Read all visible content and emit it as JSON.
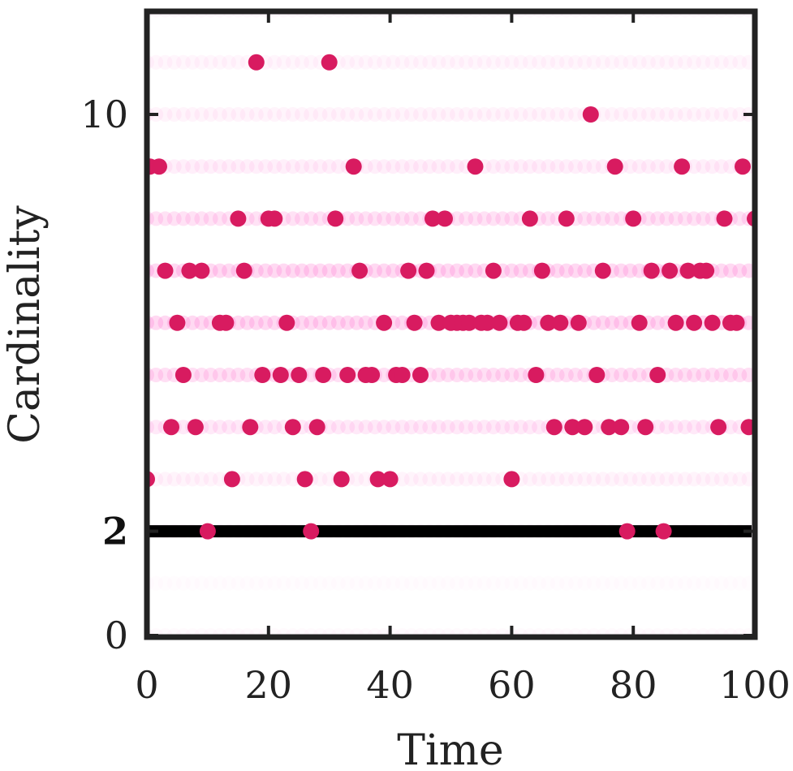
{
  "chart_data": {
    "type": "scatter",
    "title": "",
    "xlabel": "Time",
    "ylabel": "Cardinality",
    "xlim": [
      0,
      100
    ],
    "ylim": [
      0,
      12
    ],
    "xticks": [
      0,
      20,
      40,
      60,
      80,
      100
    ],
    "xtick_labels": [
      "0",
      "20",
      "40",
      "60",
      "80",
      "100"
    ],
    "yticks": [
      0,
      2,
      10
    ],
    "ytick_labels": [
      "0",
      "2",
      "10"
    ],
    "bold_ytick": "2",
    "grid": false,
    "colors": {
      "points": "#d81b60",
      "background_band": "#ff7fd4",
      "true_cardinality_line": "#000000",
      "axes": "#222222"
    },
    "true_cardinality": {
      "value": 2,
      "x_range": [
        0,
        100
      ]
    },
    "background_bands": [
      {
        "y": 0,
        "opacity": 0.08
      },
      {
        "y": 1,
        "opacity": 0.05
      },
      {
        "y": 2,
        "opacity": 0.15
      },
      {
        "y": 3,
        "opacity": 0.18
      },
      {
        "y": 4,
        "opacity": 0.38
      },
      {
        "y": 5,
        "opacity": 0.55
      },
      {
        "y": 6,
        "opacity": 0.65
      },
      {
        "y": 7,
        "opacity": 0.65
      },
      {
        "y": 8,
        "opacity": 0.5
      },
      {
        "y": 9,
        "opacity": 0.28
      },
      {
        "y": 10,
        "opacity": 0.18
      },
      {
        "y": 11,
        "opacity": 0.15
      },
      {
        "y": 12,
        "opacity": 0.12
      }
    ],
    "points": [
      {
        "x": 18,
        "y": 11
      },
      {
        "x": 30,
        "y": 11
      },
      {
        "x": 73,
        "y": 10
      },
      {
        "x": 0.5,
        "y": 9
      },
      {
        "x": 2,
        "y": 9
      },
      {
        "x": 34,
        "y": 9
      },
      {
        "x": 54,
        "y": 9
      },
      {
        "x": 77,
        "y": 9
      },
      {
        "x": 88,
        "y": 9
      },
      {
        "x": 98,
        "y": 9
      },
      {
        "x": 15,
        "y": 8
      },
      {
        "x": 20,
        "y": 8
      },
      {
        "x": 21,
        "y": 8
      },
      {
        "x": 31,
        "y": 8
      },
      {
        "x": 47,
        "y": 8
      },
      {
        "x": 49,
        "y": 8
      },
      {
        "x": 63,
        "y": 8
      },
      {
        "x": 69,
        "y": 8
      },
      {
        "x": 80,
        "y": 8
      },
      {
        "x": 95,
        "y": 8
      },
      {
        "x": 100,
        "y": 8
      },
      {
        "x": 3,
        "y": 7
      },
      {
        "x": 7,
        "y": 7
      },
      {
        "x": 9,
        "y": 7
      },
      {
        "x": 16,
        "y": 7
      },
      {
        "x": 35,
        "y": 7
      },
      {
        "x": 43,
        "y": 7
      },
      {
        "x": 46,
        "y": 7
      },
      {
        "x": 57,
        "y": 7
      },
      {
        "x": 65,
        "y": 7
      },
      {
        "x": 75,
        "y": 7
      },
      {
        "x": 83,
        "y": 7
      },
      {
        "x": 86,
        "y": 7
      },
      {
        "x": 89,
        "y": 7
      },
      {
        "x": 91,
        "y": 7
      },
      {
        "x": 92,
        "y": 7
      },
      {
        "x": 5,
        "y": 6
      },
      {
        "x": 12,
        "y": 6
      },
      {
        "x": 13,
        "y": 6
      },
      {
        "x": 23,
        "y": 6
      },
      {
        "x": 39,
        "y": 6
      },
      {
        "x": 44,
        "y": 6
      },
      {
        "x": 48,
        "y": 6
      },
      {
        "x": 50,
        "y": 6
      },
      {
        "x": 51,
        "y": 6
      },
      {
        "x": 52,
        "y": 6
      },
      {
        "x": 53,
        "y": 6
      },
      {
        "x": 55,
        "y": 6
      },
      {
        "x": 56,
        "y": 6
      },
      {
        "x": 58,
        "y": 6
      },
      {
        "x": 61,
        "y": 6
      },
      {
        "x": 62,
        "y": 6
      },
      {
        "x": 66,
        "y": 6
      },
      {
        "x": 68,
        "y": 6
      },
      {
        "x": 71,
        "y": 6
      },
      {
        "x": 81,
        "y": 6
      },
      {
        "x": 87,
        "y": 6
      },
      {
        "x": 90,
        "y": 6
      },
      {
        "x": 93,
        "y": 6
      },
      {
        "x": 96,
        "y": 6
      },
      {
        "x": 97,
        "y": 6
      },
      {
        "x": 6,
        "y": 5
      },
      {
        "x": 19,
        "y": 5
      },
      {
        "x": 22,
        "y": 5
      },
      {
        "x": 25,
        "y": 5
      },
      {
        "x": 29,
        "y": 5
      },
      {
        "x": 33,
        "y": 5
      },
      {
        "x": 36,
        "y": 5
      },
      {
        "x": 37,
        "y": 5
      },
      {
        "x": 41,
        "y": 5
      },
      {
        "x": 42,
        "y": 5
      },
      {
        "x": 45,
        "y": 5
      },
      {
        "x": 64,
        "y": 5
      },
      {
        "x": 74,
        "y": 5
      },
      {
        "x": 84,
        "y": 5
      },
      {
        "x": 4,
        "y": 4
      },
      {
        "x": 8,
        "y": 4
      },
      {
        "x": 17,
        "y": 4
      },
      {
        "x": 24,
        "y": 4
      },
      {
        "x": 28,
        "y": 4
      },
      {
        "x": 67,
        "y": 4
      },
      {
        "x": 70,
        "y": 4
      },
      {
        "x": 72,
        "y": 4
      },
      {
        "x": 76,
        "y": 4
      },
      {
        "x": 78,
        "y": 4
      },
      {
        "x": 82,
        "y": 4
      },
      {
        "x": 94,
        "y": 4
      },
      {
        "x": 99,
        "y": 4
      },
      {
        "x": 0,
        "y": 3
      },
      {
        "x": 14,
        "y": 3
      },
      {
        "x": 26,
        "y": 3
      },
      {
        "x": 32,
        "y": 3
      },
      {
        "x": 38,
        "y": 3
      },
      {
        "x": 40,
        "y": 3
      },
      {
        "x": 60,
        "y": 3
      },
      {
        "x": 10,
        "y": 2
      },
      {
        "x": 27,
        "y": 2
      },
      {
        "x": 79,
        "y": 2
      },
      {
        "x": 85,
        "y": 2
      }
    ]
  }
}
